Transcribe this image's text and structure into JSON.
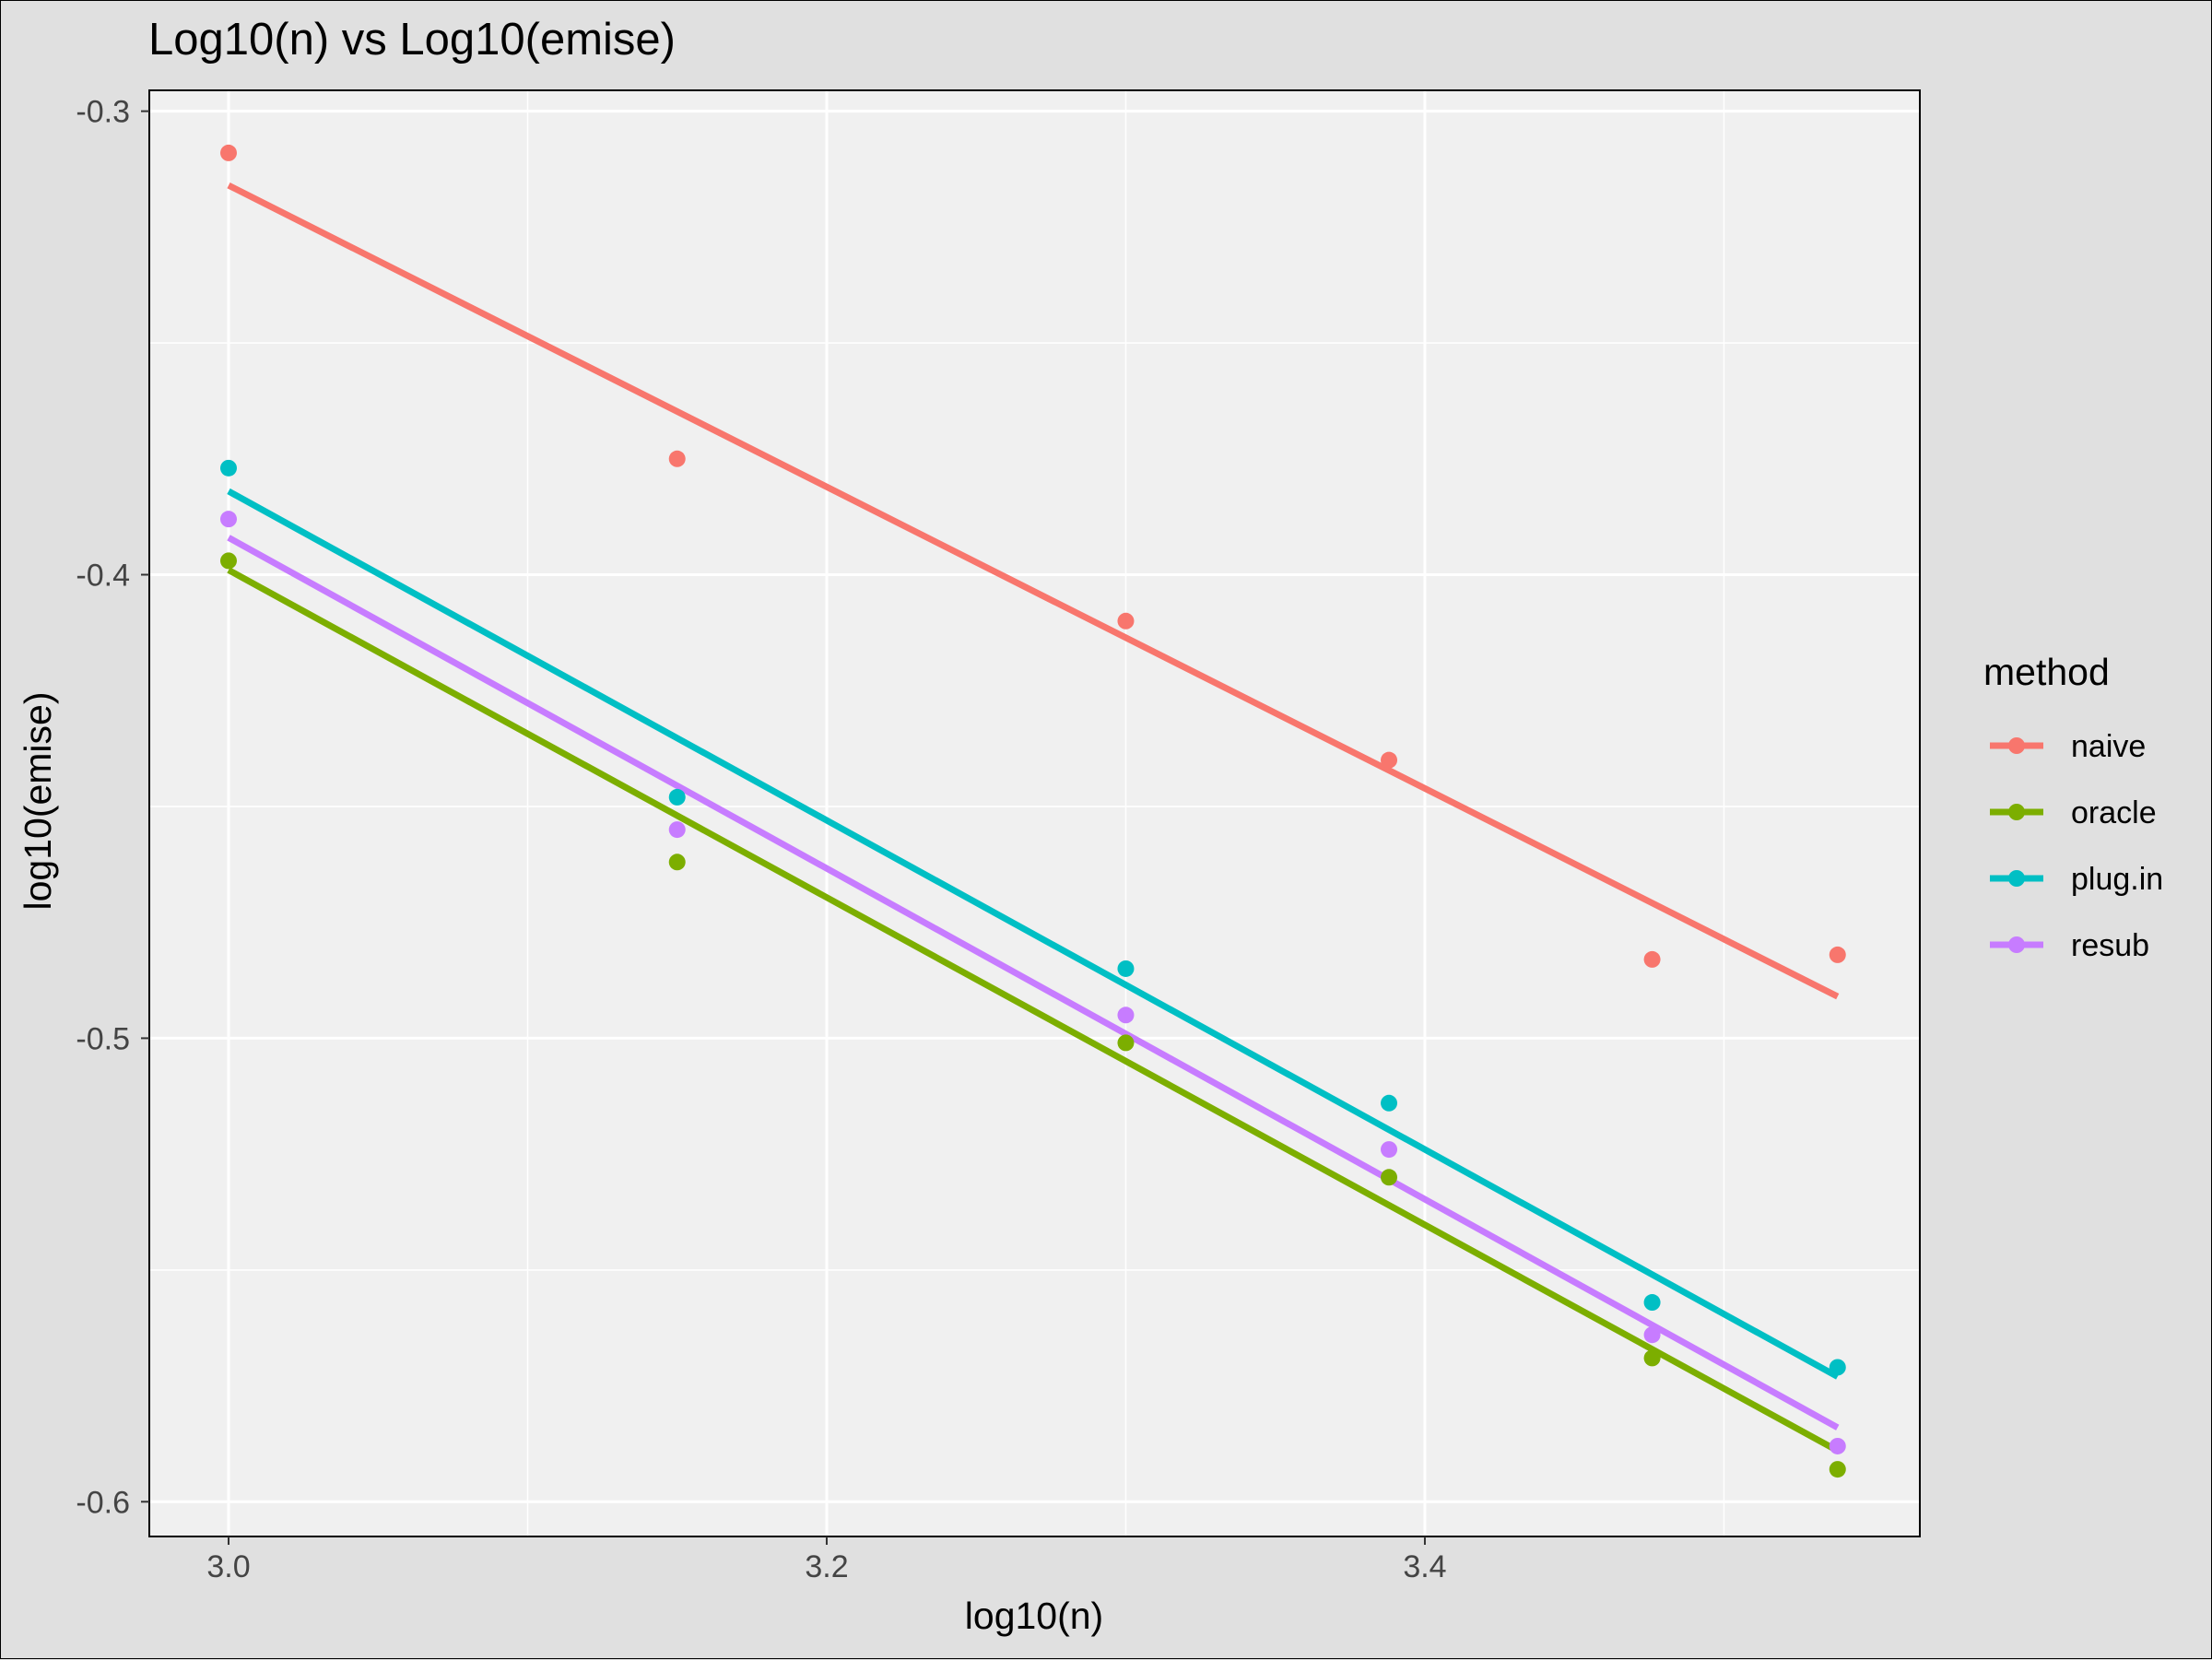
{
  "chart_data": {
    "type": "scatter",
    "title": "Log10(n) vs Log10(emise)",
    "xlabel": "log10(n)",
    "ylabel": "log10(emise)",
    "xlim": [
      2.9735,
      3.5655
    ],
    "ylim": [
      -0.6075,
      -0.2955
    ],
    "x_ticks": [
      3.0,
      3.2,
      3.4
    ],
    "x_tick_labels": [
      "3.0",
      "3.2",
      "3.4"
    ],
    "x_minor_ticks": [
      3.1,
      3.3,
      3.5
    ],
    "y_ticks": [
      -0.3,
      -0.4,
      -0.5,
      -0.6
    ],
    "y_tick_labels": [
      "-0.3",
      "-0.4",
      "-0.5",
      "-0.6"
    ],
    "y_minor_ticks": [
      -0.35,
      -0.45,
      -0.55
    ],
    "grid": true,
    "legend": {
      "title": "method",
      "position": "right"
    },
    "fit_lines": "linear regression per series",
    "x": [
      3.0,
      3.15,
      3.3,
      3.388,
      3.476,
      3.538
    ],
    "series": [
      {
        "name": "naive",
        "color": "#F8766D",
        "y": [
          -0.309,
          -0.375,
          -0.41,
          -0.44,
          -0.483,
          -0.482
        ],
        "fit": [
          -0.316,
          -0.491
        ]
      },
      {
        "name": "oracle",
        "color": "#7CAE00",
        "y": [
          -0.397,
          -0.462,
          -0.501,
          -0.53,
          -0.569,
          -0.593
        ],
        "fit": [
          -0.399,
          -0.589
        ]
      },
      {
        "name": "plug.in",
        "color": "#00BFC4",
        "y": [
          -0.377,
          -0.448,
          -0.485,
          -0.514,
          -0.557,
          -0.571
        ],
        "fit": [
          -0.382,
          -0.573
        ]
      },
      {
        "name": "resub",
        "color": "#C77CFF",
        "y": [
          -0.388,
          -0.455,
          -0.495,
          -0.524,
          -0.564,
          -0.588
        ],
        "fit": [
          -0.392,
          -0.584
        ]
      }
    ]
  }
}
